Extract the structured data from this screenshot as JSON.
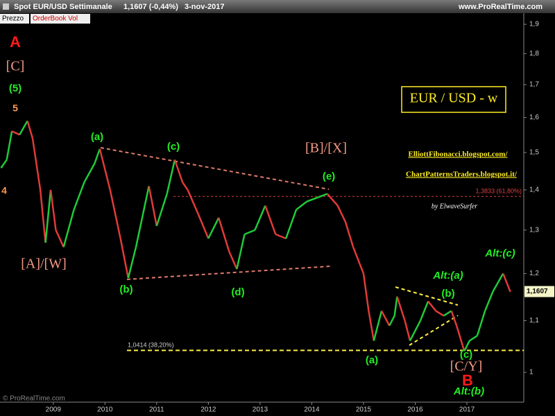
{
  "header": {
    "instrument": "Spot EUR/USD",
    "period": "Settimanale",
    "quote": "1,1607 (-0,44%)",
    "date": "3-nov-2017",
    "site": "www.ProRealTime.com",
    "tabs": [
      "Prezzo",
      "OrderBook Vol"
    ],
    "watermark": "© ProRealTime.com"
  },
  "chart_data": {
    "type": "line",
    "log_scale": true,
    "x": [
      2008.0,
      2008.1,
      2008.2,
      2008.35,
      2008.5,
      2008.6,
      2008.75,
      2008.85,
      2008.95,
      2009.05,
      2009.2,
      2009.4,
      2009.6,
      2009.8,
      2009.9,
      2010.1,
      2010.3,
      2010.45,
      2010.6,
      2010.85,
      2011.0,
      2011.2,
      2011.35,
      2011.5,
      2011.6,
      2011.8,
      2012.0,
      2012.2,
      2012.4,
      2012.55,
      2012.7,
      2012.9,
      2013.1,
      2013.3,
      2013.5,
      2013.7,
      2013.9,
      2014.1,
      2014.3,
      2014.5,
      2014.65,
      2014.8,
      2015.0,
      2015.1,
      2015.2,
      2015.35,
      2015.5,
      2015.6,
      2015.65,
      2015.8,
      2015.9,
      2016.1,
      2016.25,
      2016.4,
      2016.55,
      2016.7,
      2016.8,
      2016.95,
      2017.05,
      2017.2,
      2017.35,
      2017.5,
      2017.6,
      2017.7,
      2017.84
    ],
    "series": [
      {
        "name": "Spot EUR/USD",
        "up_color": "#1fcc3a",
        "down_color": "#e23a3a",
        "values": [
          1.46,
          1.48,
          1.56,
          1.55,
          1.59,
          1.54,
          1.4,
          1.27,
          1.4,
          1.3,
          1.26,
          1.35,
          1.42,
          1.47,
          1.51,
          1.4,
          1.28,
          1.19,
          1.26,
          1.41,
          1.31,
          1.39,
          1.48,
          1.42,
          1.4,
          1.34,
          1.28,
          1.33,
          1.25,
          1.21,
          1.29,
          1.3,
          1.36,
          1.29,
          1.28,
          1.35,
          1.37,
          1.38,
          1.39,
          1.36,
          1.32,
          1.26,
          1.2,
          1.12,
          1.06,
          1.12,
          1.09,
          1.11,
          1.15,
          1.1,
          1.06,
          1.1,
          1.14,
          1.12,
          1.11,
          1.12,
          1.09,
          1.04,
          1.06,
          1.07,
          1.12,
          1.16,
          1.18,
          1.2,
          1.16
        ]
      }
    ],
    "xlim": [
      2007.97,
      2018.1
    ],
    "xticks": [
      2009,
      2010,
      2011,
      2012,
      2013,
      2014,
      2015,
      2016,
      2017
    ],
    "ylim": [
      0.949,
      1.932
    ],
    "yticks": [
      1,
      {
        "value": 1.1,
        "label": "1,1"
      },
      {
        "value": 1.2,
        "label": "1,2"
      },
      {
        "value": 1.3,
        "label": "1,3"
      },
      {
        "value": 1.4,
        "label": "1,4"
      },
      {
        "value": 1.5,
        "label": "1,5"
      },
      {
        "value": 1.6,
        "label": "1,6"
      },
      {
        "value": 1.7,
        "label": "1,7"
      },
      {
        "value": 1.8,
        "label": "1,8"
      },
      {
        "value": 1.9,
        "label": "1,9"
      }
    ],
    "last": {
      "value": 1.1607,
      "label": "1,1607"
    },
    "levels": [
      {
        "value": 1.3833,
        "label": "1,3833 (61,80%)",
        "color": "#e04040"
      },
      {
        "value": 1.0414,
        "label": "1,0414 (38,20%)",
        "color": "#ffee44"
      }
    ],
    "annotations": [
      {
        "text": "A",
        "color": "#ff1a1a"
      },
      {
        "text": "[C]",
        "color": "#f59a85"
      },
      {
        "text": "(5)",
        "color": "#22ee22"
      },
      {
        "text": "5",
        "color": "#ff9a55"
      },
      {
        "text": "4",
        "color": "#ff9a55"
      },
      {
        "text": "[A]/[W]",
        "color": "#f59a85"
      },
      {
        "text": "(a)",
        "color": "#22ee22"
      },
      {
        "text": "(b)",
        "color": "#22ee22"
      },
      {
        "text": "(c)",
        "color": "#22ee22"
      },
      {
        "text": "(d)",
        "color": "#22ee22"
      },
      {
        "text": "[B]/[X]",
        "color": "#f59a85"
      },
      {
        "text": "(e)",
        "color": "#22ee22"
      },
      {
        "text": "(a)",
        "color": "#22ee22"
      },
      {
        "text": "Alt:(a)",
        "color": "#22ee22"
      },
      {
        "text": "(b)",
        "color": "#22ee22"
      },
      {
        "text": "Alt:(c)",
        "color": "#22ee22"
      },
      {
        "text": "(c)",
        "color": "#22ee22"
      },
      {
        "text": "[C/Y]",
        "color": "#f59a85"
      },
      {
        "text": "B",
        "color": "#ff1a1a"
      },
      {
        "text": "Alt:(b)",
        "color": "#22ee22"
      },
      {
        "text": "EUR / USD - w",
        "color": "#ffee22"
      },
      {
        "text": "ElliottFibonacci.blogspot.com/",
        "color": "#ffee22"
      },
      {
        "text": "ChartPatternsTraders.blogspot.it/",
        "color": "#ffee22"
      },
      {
        "text": "by ElwaveSurfer",
        "color": "#ffffff"
      }
    ]
  }
}
